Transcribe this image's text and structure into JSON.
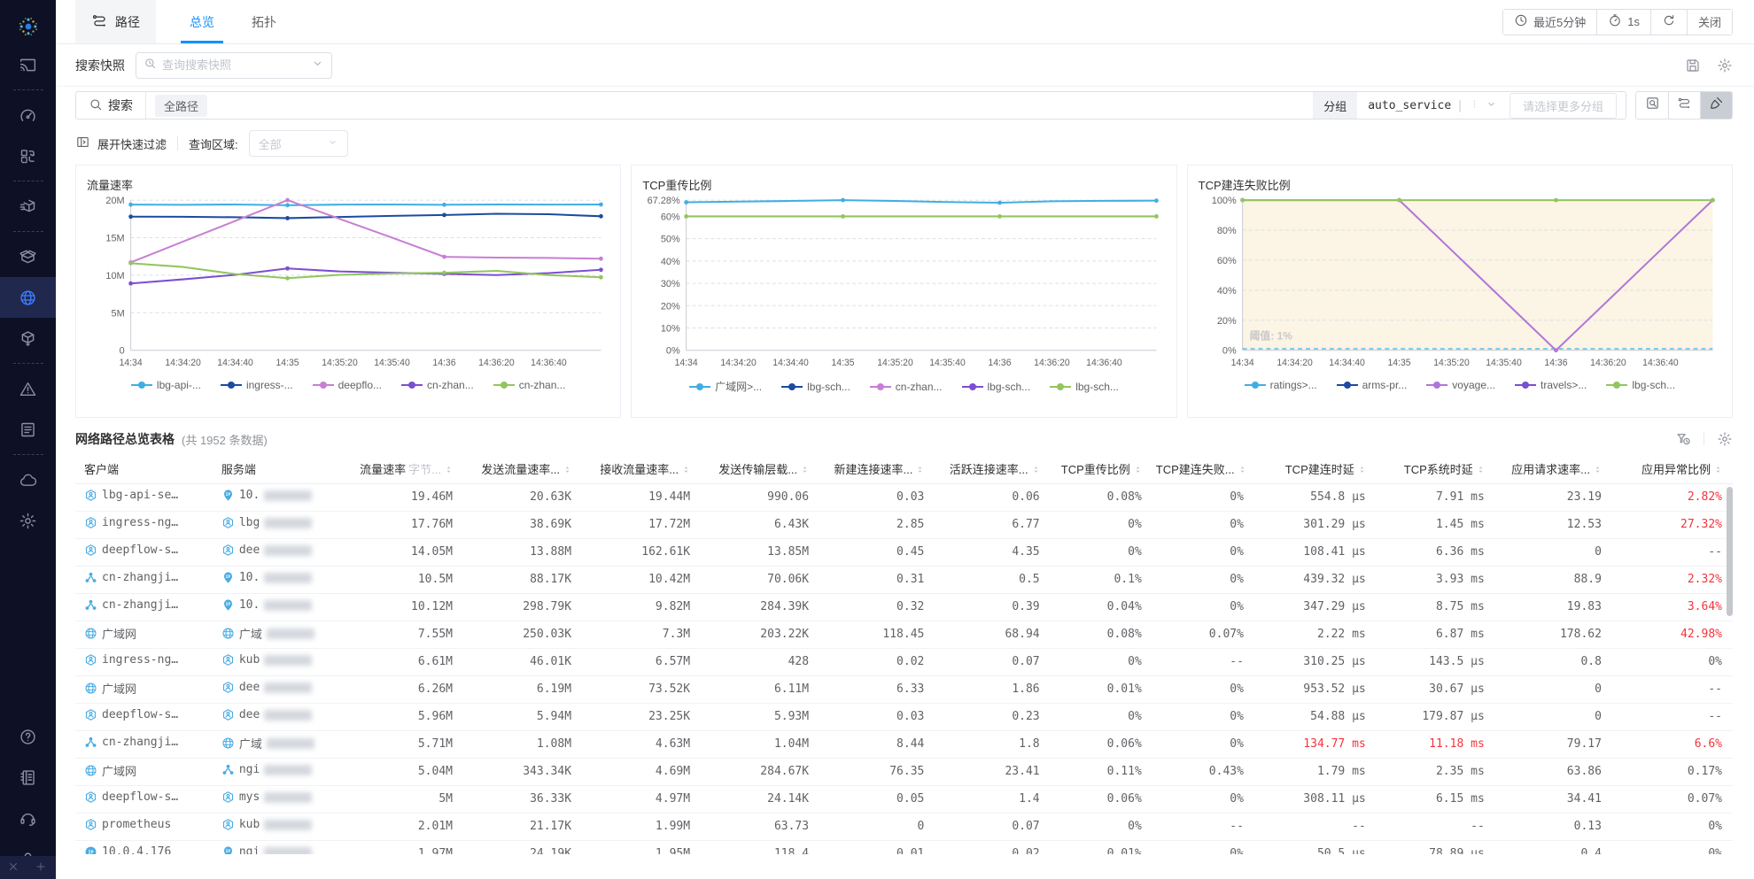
{
  "sidebar": {
    "items": [
      {
        "icon": "logo",
        "name": "app-logo",
        "logo": true
      },
      {
        "icon": "cast",
        "name": "nav-screen-cast"
      },
      {
        "divider": true
      },
      {
        "icon": "gauge",
        "name": "nav-dashboard"
      },
      {
        "icon": "swap",
        "name": "nav-resource-sync"
      },
      {
        "divider": true
      },
      {
        "icon": "boxSpeed",
        "name": "nav-delivery"
      },
      {
        "divider": true
      },
      {
        "icon": "boxOpen",
        "name": "nav-assets"
      },
      {
        "icon": "globe",
        "name": "nav-network",
        "active": true
      },
      {
        "icon": "cubeShare",
        "name": "nav-topology-export"
      },
      {
        "divider": true
      },
      {
        "icon": "warning",
        "name": "nav-alarms"
      },
      {
        "icon": "report",
        "name": "nav-reports"
      },
      {
        "divider": true
      },
      {
        "icon": "cloud",
        "name": "nav-cloud"
      },
      {
        "icon": "gear",
        "name": "nav-settings"
      },
      {
        "spacer": true
      },
      {
        "icon": "help",
        "name": "nav-help"
      },
      {
        "icon": "notebook",
        "name": "nav-docs"
      },
      {
        "icon": "headset",
        "name": "nav-support"
      },
      {
        "icon": "user",
        "name": "nav-account"
      }
    ]
  },
  "header": {
    "tabs": [
      {
        "label": "路径"
      },
      {
        "label": "总览",
        "active": true
      },
      {
        "label": "拓扑"
      }
    ],
    "controls": {
      "time_label": "最近5分钟",
      "interval_label": "1s",
      "close_label": "关闭"
    }
  },
  "snapshot": {
    "label": "搜索快照",
    "placeholder": "查询搜索快照"
  },
  "search": {
    "label": "搜索",
    "tag": "全路径",
    "group_label": "分组",
    "group_value": "auto_service",
    "more_placeholder": "请选择更多分组"
  },
  "filter": {
    "expand_label": "展开快速过滤",
    "region_label": "查询区域:",
    "region_value": "全部"
  },
  "chart_data": [
    {
      "type": "line",
      "key": "traffic-rate",
      "title": "流量速率",
      "x": [
        "14:34",
        "14:34:20",
        "14:34:40",
        "14:35",
        "14:35:20",
        "14:35:40",
        "14:36",
        "14:36:20",
        "14:36:40"
      ],
      "ymax": 20,
      "yticks": [
        {
          "v": 0,
          "label": "0"
        },
        {
          "v": 5,
          "label": "5M"
        },
        {
          "v": 10,
          "label": "10M"
        },
        {
          "v": 15,
          "label": "15M"
        },
        {
          "v": 20,
          "label": "20M"
        }
      ],
      "series": [
        {
          "name": "lbg-api-...",
          "color": "#41aee3",
          "values": [
            19.4,
            19.38,
            19.42,
            19.32,
            19.4,
            19.42,
            19.38,
            19.42,
            19.4,
            19.42
          ]
        },
        {
          "name": "ingress-...",
          "color": "#1c4ba0",
          "values": [
            17.8,
            17.78,
            17.72,
            17.6,
            17.76,
            17.9,
            18.02,
            18.18,
            18.12,
            17.85
          ]
        },
        {
          "name": "deepflo...",
          "color": "#c77fd4",
          "values": [
            11.7,
            14.47,
            17.23,
            20,
            17.5,
            15,
            12.45,
            12.35,
            12.3,
            12.2
          ]
        },
        {
          "name": "cn-zhan...",
          "color": "#7b4fd1",
          "values": [
            8.9,
            9.45,
            10.05,
            10.9,
            10.5,
            10.32,
            10.18,
            10.02,
            10.28,
            10.72
          ]
        },
        {
          "name": "cn-zhan...",
          "color": "#92c55f",
          "values": [
            11.6,
            11.1,
            10.15,
            9.6,
            10.05,
            10.22,
            10.32,
            10.58,
            10.02,
            9.72
          ]
        }
      ]
    },
    {
      "type": "line",
      "key": "tcp-retransmission-ratio",
      "title": "TCP重传比例",
      "x": [
        "14:34",
        "14:34:20",
        "14:34:40",
        "14:35",
        "14:35:20",
        "14:35:40",
        "14:36",
        "14:36:20",
        "14:36:40"
      ],
      "ymax": 67.28,
      "yticks": [
        {
          "v": 0,
          "label": "0%"
        },
        {
          "v": 10,
          "label": "10%"
        },
        {
          "v": 20,
          "label": "20%"
        },
        {
          "v": 30,
          "label": "30%"
        },
        {
          "v": 40,
          "label": "40%"
        },
        {
          "v": 50,
          "label": "50%"
        },
        {
          "v": 60,
          "label": "60%"
        },
        {
          "v": 67.28,
          "label": "67.28%"
        }
      ],
      "series": [
        {
          "name": "广域网>...",
          "color": "#41aee3",
          "values": [
            66.3,
            66.6,
            66.9,
            67.28,
            66.9,
            66.4,
            66.1,
            66.75,
            66.95,
            67.05
          ]
        },
        {
          "name": "lbg-sch...",
          "color": "#1c4ba0",
          "values": []
        },
        {
          "name": "cn-zhan...",
          "color": "#c77fd4",
          "values": []
        },
        {
          "name": "lbg-sch...",
          "color": "#7b4fd1",
          "values": []
        },
        {
          "name": "lbg-sch...",
          "color": "#92c55f",
          "values": [
            60,
            60,
            60,
            60,
            60,
            60,
            60,
            60,
            60,
            60
          ]
        }
      ]
    },
    {
      "type": "line",
      "key": "tcp-connect-fail-ratio",
      "title": "TCP建连失败比例",
      "x": [
        "14:34",
        "14:34:20",
        "14:34:40",
        "14:35",
        "14:35:20",
        "14:35:40",
        "14:36",
        "14:36:20",
        "14:36:40"
      ],
      "ymax": 100,
      "bg": "#fcf4e4",
      "threshold": {
        "v": 1,
        "label": "阈值: 1%",
        "color": "#5fc2ee"
      },
      "yticks": [
        {
          "v": 0,
          "label": "0%"
        },
        {
          "v": 20,
          "label": "20%"
        },
        {
          "v": 40,
          "label": "40%"
        },
        {
          "v": 60,
          "label": "60%"
        },
        {
          "v": 80,
          "label": "80%"
        },
        {
          "v": 100,
          "label": "100%"
        }
      ],
      "series": [
        {
          "name": "ratings>...",
          "color": "#41aee3",
          "values": []
        },
        {
          "name": "arms-pr...",
          "color": "#1c4ba0",
          "values": []
        },
        {
          "name": "voyage...",
          "color": "#b175d8",
          "values": [
            100,
            100,
            100,
            100,
            66.7,
            33.3,
            0,
            33.3,
            66.7,
            100
          ]
        },
        {
          "name": "travels>...",
          "color": "#7b4fd1",
          "values": []
        },
        {
          "name": "lbg-sch...",
          "color": "#92c55f",
          "values": [
            100,
            100,
            100,
            100,
            100,
            100,
            100,
            100,
            100,
            100
          ]
        }
      ]
    }
  ],
  "table": {
    "title": "网络路径总览表格",
    "count": "(共 1952 条数据)",
    "columns": [
      {
        "label": "客户端",
        "numeric": false,
        "sortable": false
      },
      {
        "label": "服务端",
        "numeric": false,
        "sortable": false
      },
      {
        "label": "流量速率",
        "sub": "字节...",
        "numeric": true,
        "sortable": true
      },
      {
        "label": "发送流量速率...",
        "numeric": true,
        "sortable": true
      },
      {
        "label": "接收流量速率...",
        "numeric": true,
        "sortable": true
      },
      {
        "label": "发送传输层载...",
        "numeric": true,
        "sortable": true
      },
      {
        "label": "新建连接速率...",
        "numeric": true,
        "sortable": true
      },
      {
        "label": "活跃连接速率...",
        "numeric": true,
        "sortable": true
      },
      {
        "label": "TCP重传比例",
        "numeric": true,
        "sortable": true
      },
      {
        "label": "TCP建连失败...",
        "numeric": true,
        "sortable": true
      },
      {
        "label": "TCP建连时延",
        "numeric": true,
        "sortable": true
      },
      {
        "label": "TCP系统时延",
        "numeric": true,
        "sortable": true
      },
      {
        "label": "应用请求速率...",
        "numeric": true,
        "sortable": true
      },
      {
        "label": "应用异常比例",
        "numeric": true,
        "sortable": true
      }
    ],
    "rows": [
      {
        "client": {
          "icon": "svc",
          "label": "lbg-api-se…"
        },
        "server": {
          "icon": "pin",
          "prefix": "10.",
          "blurred": true
        },
        "values": [
          "19.46M",
          "20.63K",
          "19.44M",
          "990.06",
          "0.03",
          "0.06",
          "0.08%",
          "0%",
          "554.8 µs",
          "7.91 ms",
          "23.19",
          "2.82%"
        ],
        "red": [
          11
        ]
      },
      {
        "client": {
          "icon": "svc",
          "label": "ingress-ng…"
        },
        "server": {
          "icon": "svc",
          "prefix": "lbg",
          "blurred": true
        },
        "values": [
          "17.76M",
          "38.69K",
          "17.72M",
          "6.43K",
          "2.85",
          "6.77",
          "0%",
          "0%",
          "301.29 µs",
          "1.45 ms",
          "12.53",
          "27.32%"
        ],
        "red": [
          11
        ]
      },
      {
        "client": {
          "icon": "svc",
          "label": "deepflow-s…"
        },
        "server": {
          "icon": "svc",
          "prefix": "dee",
          "blurred": true
        },
        "values": [
          "14.05M",
          "13.88M",
          "162.61K",
          "13.85M",
          "0.45",
          "4.35",
          "0%",
          "0%",
          "108.41 µs",
          "6.36 ms",
          "0",
          "--"
        ],
        "red": []
      },
      {
        "client": {
          "icon": "cluster",
          "label": "cn-zhangji…"
        },
        "server": {
          "icon": "pin",
          "prefix": "10.",
          "blurred": true
        },
        "values": [
          "10.5M",
          "88.17K",
          "10.42M",
          "70.06K",
          "0.31",
          "0.5",
          "0.1%",
          "0%",
          "439.32 µs",
          "3.93 ms",
          "88.9",
          "2.32%"
        ],
        "red": [
          11
        ]
      },
      {
        "client": {
          "icon": "cluster",
          "label": "cn-zhangji…"
        },
        "server": {
          "icon": "pin",
          "prefix": "10.",
          "blurred": true
        },
        "values": [
          "10.12M",
          "298.79K",
          "9.82M",
          "284.39K",
          "0.32",
          "0.39",
          "0.04%",
          "0%",
          "347.29 µs",
          "8.75 ms",
          "19.83",
          "3.64%"
        ],
        "red": [
          11
        ]
      },
      {
        "client": {
          "icon": "globe",
          "label": "广域网"
        },
        "server": {
          "icon": "globe",
          "prefix": "广域",
          "blurred": true
        },
        "values": [
          "7.55M",
          "250.03K",
          "7.3M",
          "203.22K",
          "118.45",
          "68.94",
          "0.08%",
          "0.07%",
          "2.22 ms",
          "6.87 ms",
          "178.62",
          "42.98%"
        ],
        "red": [
          11
        ]
      },
      {
        "client": {
          "icon": "svc",
          "label": "ingress-ng…"
        },
        "server": {
          "icon": "svc",
          "prefix": "kub",
          "blurred": true
        },
        "values": [
          "6.61M",
          "46.01K",
          "6.57M",
          "428",
          "0.02",
          "0.07",
          "0%",
          "--",
          "310.25 µs",
          "143.5 µs",
          "0.8",
          "0%"
        ],
        "red": []
      },
      {
        "client": {
          "icon": "globe",
          "label": "广域网"
        },
        "server": {
          "icon": "svc",
          "prefix": "dee",
          "blurred": true
        },
        "values": [
          "6.26M",
          "6.19M",
          "73.52K",
          "6.11M",
          "6.33",
          "1.86",
          "0.01%",
          "0%",
          "953.52 µs",
          "30.67 µs",
          "0",
          "--"
        ],
        "red": []
      },
      {
        "client": {
          "icon": "svc",
          "label": "deepflow-s…"
        },
        "server": {
          "icon": "svc",
          "prefix": "dee",
          "blurred": true
        },
        "values": [
          "5.96M",
          "5.94M",
          "23.25K",
          "5.93M",
          "0.03",
          "0.23",
          "0%",
          "0%",
          "54.88 µs",
          "179.87 µs",
          "0",
          "--"
        ],
        "red": []
      },
      {
        "client": {
          "icon": "cluster",
          "label": "cn-zhangji…"
        },
        "server": {
          "icon": "globe",
          "prefix": "广域",
          "blurred": true
        },
        "values": [
          "5.71M",
          "1.08M",
          "4.63M",
          "1.04M",
          "8.44",
          "1.8",
          "0.06%",
          "0%",
          "134.77 ms",
          "11.18 ms",
          "79.17",
          "6.6%"
        ],
        "red": [
          8,
          9,
          11
        ]
      },
      {
        "client": {
          "icon": "globe",
          "label": "广域网"
        },
        "server": {
          "icon": "cluster",
          "prefix": "ngi",
          "blurred": true
        },
        "values": [
          "5.04M",
          "343.34K",
          "4.69M",
          "284.67K",
          "76.35",
          "23.41",
          "0.11%",
          "0.43%",
          "1.79 ms",
          "2.35 ms",
          "63.86",
          "0.17%"
        ],
        "red": []
      },
      {
        "client": {
          "icon": "svc",
          "label": "deepflow-s…"
        },
        "server": {
          "icon": "svc",
          "prefix": "mys",
          "blurred": true
        },
        "values": [
          "5M",
          "36.33K",
          "4.97M",
          "24.14K",
          "0.05",
          "1.4",
          "0.06%",
          "0%",
          "308.11 µs",
          "6.15 ms",
          "34.41",
          "0.07%"
        ],
        "red": []
      },
      {
        "client": {
          "icon": "svc",
          "label": "prometheus"
        },
        "server": {
          "icon": "svc",
          "prefix": "kub",
          "blurred": true
        },
        "values": [
          "2.01M",
          "21.17K",
          "1.99M",
          "63.73",
          "0",
          "0.07",
          "0%",
          "--",
          "--",
          "--",
          "0.13",
          "0%"
        ],
        "red": []
      },
      {
        "client": {
          "icon": "ipc",
          "label": "10.0.4.176"
        },
        "server": {
          "icon": "pin",
          "prefix": "ngi",
          "blurred": true
        },
        "values": [
          "1.97M",
          "24.19K",
          "1.95M",
          "118.4",
          "0.01",
          "0.02",
          "0.01%",
          "0%",
          "50.5 µs",
          "78.89 µs",
          "0.4",
          "0%"
        ],
        "red": []
      }
    ]
  }
}
